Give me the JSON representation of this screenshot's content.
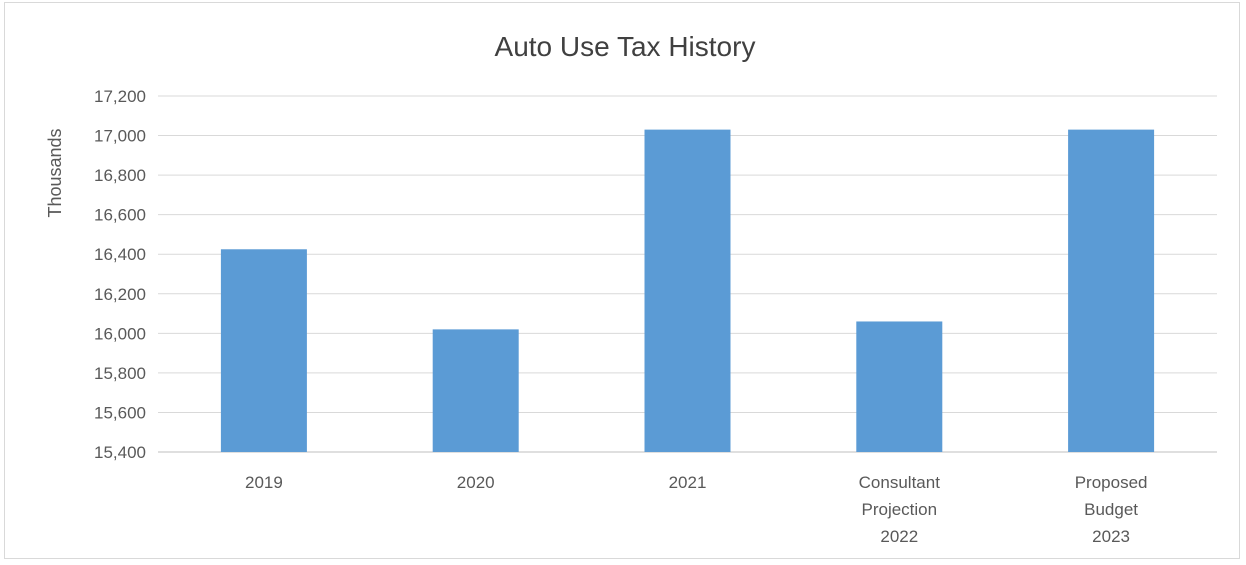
{
  "chart_data": {
    "type": "bar",
    "title": "Auto Use Tax History",
    "ylabel": "Thousands",
    "xlabel": "",
    "categories": [
      [
        "2019"
      ],
      [
        "2020"
      ],
      [
        "2021"
      ],
      [
        "Consultant",
        "Projection",
        "2022"
      ],
      [
        "Proposed",
        "Budget",
        "2023"
      ]
    ],
    "values": [
      16425,
      16020,
      17030,
      16060,
      17030
    ],
    "ylim": [
      15400,
      17200
    ],
    "ytick_step": 200,
    "ytick_labels": [
      "15,400",
      "15,600",
      "15,800",
      "16,000",
      "16,200",
      "16,400",
      "16,600",
      "16,800",
      "17,000",
      "17,200"
    ],
    "bar_color": "#5b9bd5",
    "grid": true,
    "legend": "none"
  }
}
